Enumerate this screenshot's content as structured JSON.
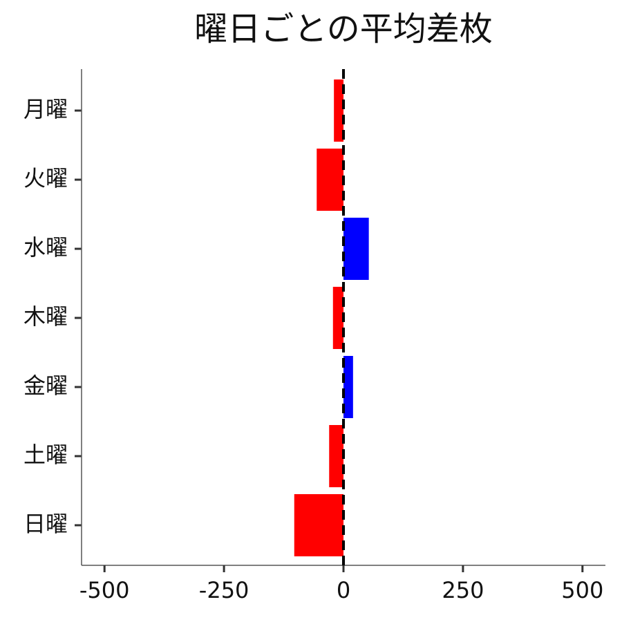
{
  "chart_data": {
    "type": "barh",
    "title": "曜日ごとの平均差枚",
    "categories": [
      "月曜",
      "火曜",
      "水曜",
      "木曜",
      "金曜",
      "土曜",
      "日曜"
    ],
    "values": [
      -20,
      -56,
      53,
      -22,
      20,
      -30,
      -103
    ],
    "colors": [
      "#ff0000",
      "#ff0000",
      "#0000ff",
      "#ff0000",
      "#0000ff",
      "#ff0000",
      "#ff0000"
    ],
    "xlim": [
      -548,
      548
    ],
    "xticks": [
      -500,
      -250,
      0,
      250,
      500
    ],
    "vline": 0
  }
}
